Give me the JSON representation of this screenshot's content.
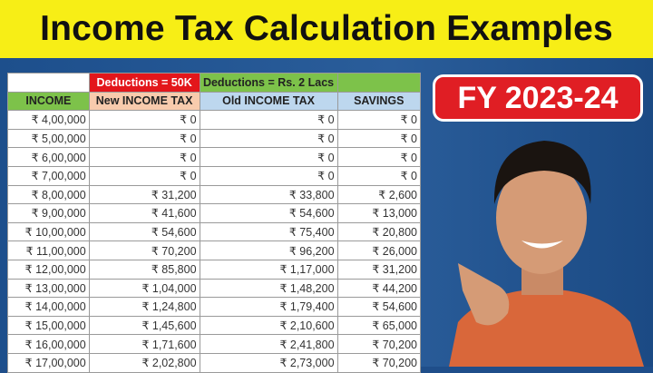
{
  "title": "Income Tax Calculation Examples",
  "badge": "FY 2023-24",
  "table": {
    "top_headers": [
      "",
      "Deductions = 50K",
      "Deductions = Rs. 2 Lacs",
      ""
    ],
    "headers": [
      "INCOME",
      "New INCOME TAX",
      "Old INCOME TAX",
      "SAVINGS"
    ],
    "rows": [
      [
        "₹ 4,00,000",
        "₹ 0",
        "₹ 0",
        "₹ 0"
      ],
      [
        "₹ 5,00,000",
        "₹ 0",
        "₹ 0",
        "₹ 0"
      ],
      [
        "₹ 6,00,000",
        "₹ 0",
        "₹ 0",
        "₹ 0"
      ],
      [
        "₹ 7,00,000",
        "₹ 0",
        "₹ 0",
        "₹ 0"
      ],
      [
        "₹ 8,00,000",
        "₹ 31,200",
        "₹ 33,800",
        "₹ 2,600"
      ],
      [
        "₹ 9,00,000",
        "₹ 41,600",
        "₹ 54,600",
        "₹ 13,000"
      ],
      [
        "₹ 10,00,000",
        "₹ 54,600",
        "₹ 75,400",
        "₹ 20,800"
      ],
      [
        "₹ 11,00,000",
        "₹ 70,200",
        "₹ 96,200",
        "₹ 26,000"
      ],
      [
        "₹ 12,00,000",
        "₹ 85,800",
        "₹ 1,17,000",
        "₹ 31,200"
      ],
      [
        "₹ 13,00,000",
        "₹ 1,04,000",
        "₹ 1,48,200",
        "₹ 44,200"
      ],
      [
        "₹ 14,00,000",
        "₹ 1,24,800",
        "₹ 1,79,400",
        "₹ 54,600"
      ],
      [
        "₹ 15,00,000",
        "₹ 1,45,600",
        "₹ 2,10,600",
        "₹ 65,000"
      ],
      [
        "₹ 16,00,000",
        "₹ 1,71,600",
        "₹ 2,41,800",
        "₹ 70,200"
      ],
      [
        "₹ 17,00,000",
        "₹ 2,02,800",
        "₹ 2,73,000",
        "₹ 70,200"
      ]
    ]
  },
  "colors": {
    "title_bg": "#f7ee16",
    "background": "#1f4e8a",
    "badge": "#e01e24"
  }
}
